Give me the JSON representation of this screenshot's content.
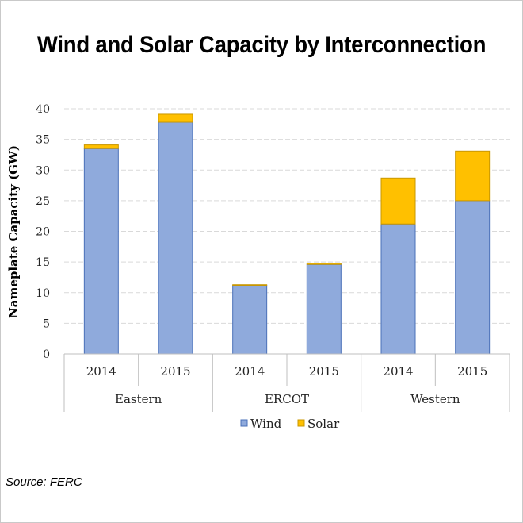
{
  "chart_data": {
    "type": "bar",
    "stacked": true,
    "title": "Wind and Solar Capacity by Interconnection",
    "ylabel": "Nameplate Capacity (GW)",
    "xlabel": "",
    "ylim": [
      0,
      40
    ],
    "yticks": [
      0,
      5,
      10,
      15,
      20,
      25,
      30,
      35,
      40
    ],
    "grid": true,
    "groups": [
      "Eastern",
      "ERCOT",
      "Western"
    ],
    "categories": [
      "2014",
      "2015",
      "2014",
      "2015",
      "2014",
      "2015"
    ],
    "series": [
      {
        "name": "Wind",
        "color": "#8faadc",
        "values": [
          33.5,
          37.8,
          11.2,
          14.6,
          21.2,
          25.0
        ]
      },
      {
        "name": "Solar",
        "color": "#ffc000",
        "values": [
          0.6,
          1.3,
          0.1,
          0.2,
          7.5,
          8.1
        ]
      }
    ],
    "legend_position": "bottom"
  },
  "source": "Source: FERC"
}
